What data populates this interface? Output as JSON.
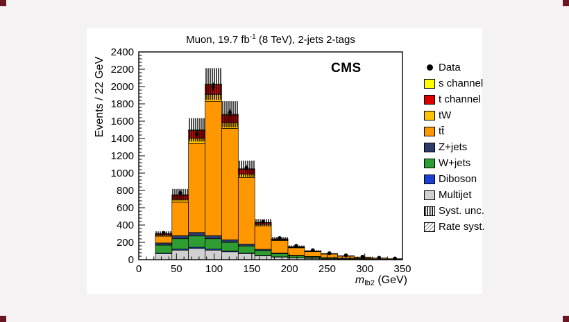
{
  "page": {
    "background": "#f5f2f4",
    "panel_background": "#ffffff",
    "corner_marker_color": "#6b1723"
  },
  "chart_data": {
    "type": "stacked-histogram",
    "title_parts": {
      "prefix": "Muon, 19.7 fb",
      "sup": "-1",
      "suffix": " (8 TeV), 2-jets 2-tags"
    },
    "experiment_label": "CMS",
    "ylabel": "Events / 22 GeV",
    "xlabel_parts": {
      "var": "m",
      "sub": "lb2",
      "suffix": " (GeV)"
    },
    "xlim": [
      0,
      350
    ],
    "ylim": [
      0,
      2400
    ],
    "x_major_ticks": [
      0,
      50,
      100,
      150,
      200,
      250,
      300,
      350
    ],
    "y_major_ticks": [
      0,
      200,
      400,
      600,
      800,
      1000,
      1200,
      1400,
      1600,
      1800,
      2000,
      2200,
      2400
    ],
    "grid": false,
    "legend_position": "right",
    "bin_edges": [
      0,
      22,
      44,
      66,
      88,
      110,
      132,
      154,
      176,
      198,
      220,
      242,
      264,
      286,
      308,
      330,
      350
    ],
    "stack": [
      {
        "name": "Multijet",
        "color": "#d0d0d0",
        "values": [
          0,
          70,
          110,
          130,
          110,
          90,
          70,
          45,
          30,
          20,
          15,
          10,
          7,
          5,
          3,
          2
        ]
      },
      {
        "name": "Diboson",
        "color": "#1b3fd1",
        "values": [
          0,
          8,
          12,
          14,
          12,
          10,
          8,
          5,
          3,
          2,
          2,
          1,
          1,
          1,
          0,
          0
        ]
      },
      {
        "name": "W+jets",
        "color": "#2f9e32",
        "values": [
          0,
          90,
          120,
          130,
          120,
          100,
          80,
          55,
          35,
          22,
          15,
          10,
          7,
          5,
          3,
          2
        ]
      },
      {
        "name": "Z+jets",
        "color": "#2b3c6b",
        "values": [
          0,
          25,
          35,
          40,
          35,
          30,
          22,
          15,
          10,
          7,
          5,
          3,
          2,
          2,
          1,
          1
        ]
      },
      {
        "name": "tt̄",
        "color": "#ff9800",
        "values": [
          0,
          78,
          388,
          1028,
          1553,
          1287,
          768,
          271,
          141,
          86,
          55,
          41,
          25,
          15,
          12,
          7
        ]
      },
      {
        "name": "tW",
        "color": "#ffc200",
        "values": [
          0,
          12,
          30,
          60,
          80,
          65,
          42,
          17,
          10,
          6,
          4,
          3,
          2,
          1,
          1,
          0
        ]
      },
      {
        "name": "t channel",
        "color": "#dd0000",
        "values": [
          0,
          15,
          50,
          90,
          110,
          90,
          55,
          20,
          10,
          6,
          4,
          2,
          1,
          1,
          0,
          0
        ]
      },
      {
        "name": "s channel",
        "color": "#ffff00",
        "values": [
          0,
          2,
          5,
          8,
          10,
          8,
          5,
          2,
          1,
          1,
          0,
          0,
          0,
          0,
          0,
          0
        ]
      }
    ],
    "syst_frac": 0.09,
    "data_points": {
      "x": [
        33,
        55,
        77,
        99,
        121,
        143,
        165,
        187,
        209,
        231,
        253,
        275,
        297,
        319,
        340
      ],
      "y": [
        310,
        770,
        1450,
        2000,
        1700,
        1060,
        440,
        250,
        160,
        110,
        75,
        50,
        35,
        22,
        14
      ]
    },
    "legend": [
      {
        "label": "Data",
        "swatch": "dot"
      },
      {
        "label": "s channel",
        "swatch": "fill",
        "color": "#ffff00"
      },
      {
        "label": "t channel",
        "swatch": "fill",
        "color": "#dd0000"
      },
      {
        "label": "tW",
        "swatch": "fill",
        "color": "#ffc200"
      },
      {
        "label": "tt̄",
        "swatch": "fill",
        "color": "#ff9800"
      },
      {
        "label": "Z+jets",
        "swatch": "fill",
        "color": "#2b3c6b"
      },
      {
        "label": "W+jets",
        "swatch": "fill",
        "color": "#2f9e32"
      },
      {
        "label": "Diboson",
        "swatch": "fill",
        "color": "#1b3fd1"
      },
      {
        "label": "Multijet",
        "swatch": "fill",
        "color": "#d0d0d0"
      },
      {
        "label": "Syst. unc.",
        "swatch": "hatch-dense"
      },
      {
        "label": "Rate syst.",
        "swatch": "hatch-light"
      }
    ]
  }
}
